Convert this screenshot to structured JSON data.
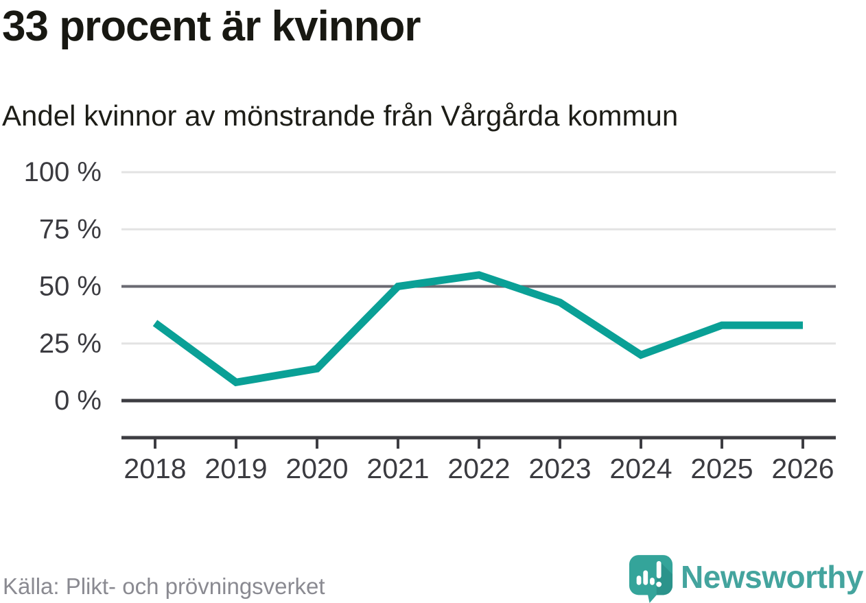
{
  "header": {
    "title": "33 procent är kvinnor",
    "subtitle": "Andel kvinnor av mönstrande från Vårgårda kommun"
  },
  "chart_data": {
    "type": "line",
    "title": "33 procent är kvinnor",
    "subtitle": "Andel kvinnor av mönstrande från Vårgårda kommun",
    "categories": [
      "2018",
      "2019",
      "2020",
      "2021",
      "2022",
      "2023",
      "2024",
      "2025",
      "2026"
    ],
    "series": [
      {
        "name": "Andel kvinnor av mönstrande",
        "values": [
          34,
          8,
          14,
          50,
          55,
          43,
          20,
          33,
          33
        ]
      }
    ],
    "xlabel": "",
    "ylabel": "",
    "ylim": [
      0,
      100
    ],
    "yticks": [
      0,
      25,
      50,
      75,
      100
    ],
    "ytick_suffix": " %",
    "grid": "horizontal",
    "legend": "none",
    "emphasized_gridlines": [
      0,
      50
    ]
  },
  "footer": {
    "source": "Källa: Plikt- och prövningsverket",
    "brand_name": "Newsworthy"
  },
  "icons": {
    "logo": "newsworthy-speech-bubble-bar-chart-icon"
  },
  "colors": {
    "line": "#0aa096",
    "grid_light": "#e3e3e3",
    "grid_mid": "#6a6a72",
    "axis": "#3d3d42",
    "tick_text": "#3b3b40",
    "title_text": "#181812",
    "muted_text": "#8a8a91",
    "brand_teal": "#44a49e",
    "logo_fill": "#34a49a",
    "logo_shade": "#2b938b"
  }
}
